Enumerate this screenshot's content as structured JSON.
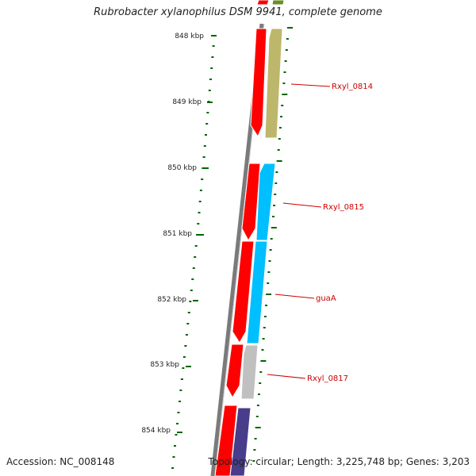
{
  "title": "Rubrobacter xylanophilus DSM 9941, complete genome",
  "accession": "Accession: NC_008148",
  "topology": "Topology: circular; Length: 3,225,748 bp; Genes: 3,203",
  "scale": {
    "tick_labels": [
      "848 kbp",
      "849 kbp",
      "850 kbp",
      "851 kbp",
      "852 kbp",
      "853 kbp",
      "854 kbp"
    ]
  },
  "genes": [
    {
      "label": "Rxyl_0814"
    },
    {
      "label": "Rxyl_0815"
    },
    {
      "label": "guaA"
    },
    {
      "label": "Rxyl_0817"
    }
  ],
  "colors": {
    "backbone": "#808080",
    "forward_strand": "#ff0000",
    "gene_0814": "#bdb76b",
    "gene_0815_guaA": "#00bfff",
    "gene_0817": "#c0c0c0",
    "gene_bottom": "#483d8b",
    "tick": "#006400"
  }
}
